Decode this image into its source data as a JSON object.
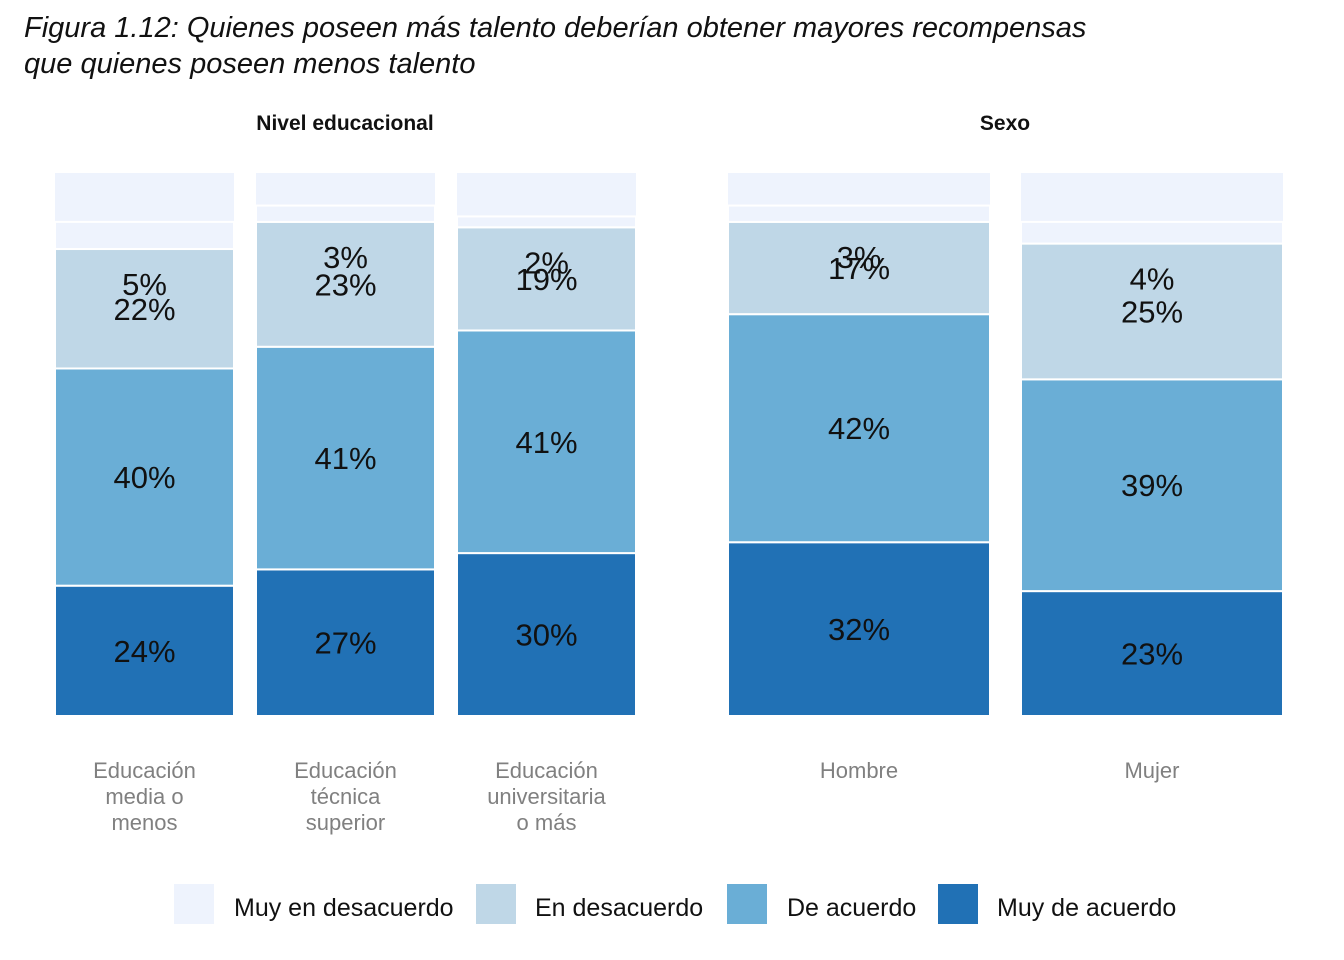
{
  "figure_title": {
    "line1": "Figura 1.12: Quienes poseen más talento deberían obtener mayores recompensas",
    "line2": "que quienes poseen menos talento"
  },
  "colors": {
    "Muy en desacuerdo": "#eef3fd",
    "En desacuerdo": "#bfd7e7",
    "De acuerdo": "#6aaed6",
    "Muy de acuerdo": "#2171b5"
  },
  "chart_data": {
    "type": "bar",
    "stacked": true,
    "series_order": [
      "Muy de acuerdo",
      "De acuerdo",
      "En desacuerdo",
      "Muy en desacuerdo"
    ],
    "legend": [
      "Muy en desacuerdo",
      "En desacuerdo",
      "De acuerdo",
      "Muy de acuerdo"
    ],
    "legend_position": "bottom",
    "panels": [
      {
        "title": "Nivel educacional",
        "categories": [
          [
            "Educación",
            "media o",
            "menos"
          ],
          [
            "Educación",
            "técnica",
            "superior"
          ],
          [
            "Educación",
            "universitaria",
            "o más"
          ]
        ],
        "series": [
          {
            "name": "Muy de acuerdo",
            "values": [
              24,
              27,
              30
            ]
          },
          {
            "name": "De acuerdo",
            "values": [
              40,
              41,
              41
            ]
          },
          {
            "name": "En desacuerdo",
            "values": [
              22,
              23,
              19
            ]
          },
          {
            "name": "Muy en desacuerdo",
            "values": [
              5,
              3,
              2
            ]
          }
        ]
      },
      {
        "title": "Sexo",
        "categories": [
          [
            "Hombre"
          ],
          [
            "Mujer"
          ]
        ],
        "series": [
          {
            "name": "Muy de acuerdo",
            "values": [
              32,
              23
            ]
          },
          {
            "name": "De acuerdo",
            "values": [
              42,
              39
            ]
          },
          {
            "name": "En desacuerdo",
            "values": [
              17,
              25
            ]
          },
          {
            "name": "Muy en desacuerdo",
            "values": [
              3,
              4
            ]
          }
        ]
      }
    ]
  }
}
